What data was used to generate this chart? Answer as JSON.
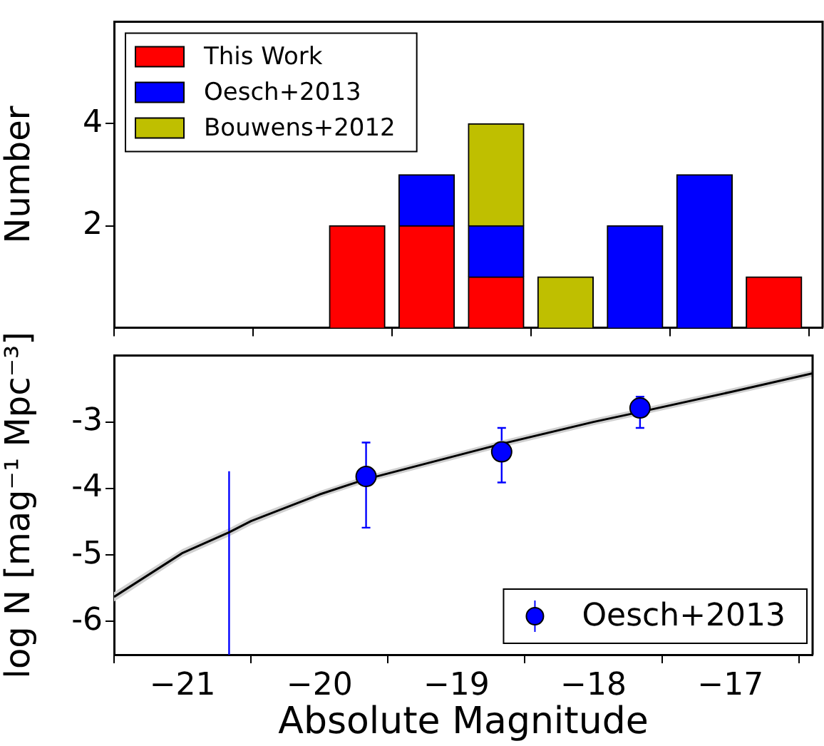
{
  "chart_data": [
    {
      "type": "bar",
      "stacked": true,
      "x": [
        -19.75,
        -19.25,
        -18.75,
        -18.25,
        -17.75,
        -17.25,
        -16.75
      ],
      "ylabel": "Number",
      "xlim": [
        -21.5,
        -16.4
      ],
      "xticks": [
        -21,
        -20,
        -19,
        -18,
        -17
      ],
      "ylim": [
        0,
        6
      ],
      "yticks": [
        2,
        4
      ],
      "tick_labels": "y",
      "legend": "top left",
      "series": [
        {
          "name": "This Work",
          "color": "#ff0000",
          "values": [
            2,
            2,
            1,
            0,
            0,
            0,
            1
          ]
        },
        {
          "name": "Oesch+2013",
          "color": "#0000ff",
          "values": [
            0,
            1,
            1,
            0,
            2,
            3,
            0
          ]
        },
        {
          "name": "Bouwens+2012",
          "color": "#bfbf00",
          "values": [
            0,
            0,
            2,
            1,
            0,
            0,
            0
          ]
        }
      ]
    },
    {
      "type": "line",
      "xlabel": "Absolute Magnitude",
      "ylabel": "log N [mag⁻¹ Mpc⁻³]",
      "xlim": [
        -21.5,
        -16.4
      ],
      "xticks": [
        -21,
        -20,
        -19,
        -18,
        -17
      ],
      "ylim": [
        -6.5,
        -2
      ],
      "yticks": [
        -6,
        -5,
        -4,
        -3
      ],
      "legend": "bottom right",
      "series": [
        {
          "type": "line",
          "color": "#000000",
          "x": [
            -21.5,
            -21,
            -20.66,
            -20.5,
            -20,
            -19.66,
            -18.67,
            -18,
            -17.66,
            -17,
            -16.4
          ],
          "values": [
            -5.63,
            -4.97,
            -4.66,
            -4.49,
            -4.09,
            -3.86,
            -3.33,
            -3.0,
            -2.85,
            -2.55,
            -2.27
          ],
          "lower": [
            -5.7,
            -5.03,
            -4.72,
            -4.55,
            -4.14,
            -3.91,
            -3.38,
            -3.05,
            -2.9,
            -2.6,
            -2.32
          ],
          "upper": [
            -5.56,
            -4.91,
            -4.6,
            -4.43,
            -4.04,
            -3.81,
            -3.28,
            -2.95,
            -2.8,
            -2.5,
            -2.22
          ]
        },
        {
          "type": "line",
          "color": "#0000ff",
          "x": [
            -20.66,
            -20.66
          ],
          "values": [
            -6.5,
            -3.74
          ]
        },
        {
          "type": "scatter",
          "name": "Oesch+2013",
          "color": "#0000ff",
          "marker": "circle",
          "x": [
            -19.66,
            -18.67,
            -17.66
          ],
          "values": [
            -3.82,
            -3.45,
            -2.79
          ],
          "errors": [
            [
              -4.59,
              -3.31
            ],
            [
              -3.91,
              -3.09
            ],
            [
              -3.09,
              -2.62
            ]
          ]
        }
      ]
    }
  ]
}
